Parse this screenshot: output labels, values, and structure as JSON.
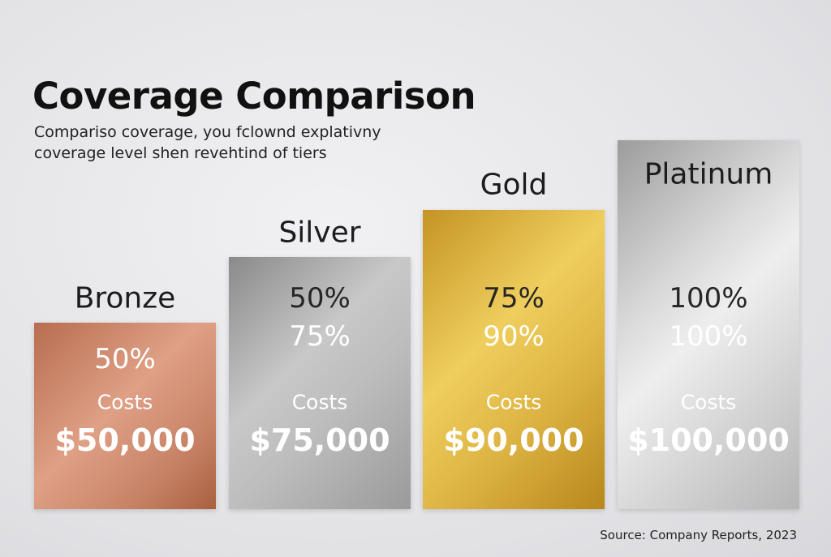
{
  "header": {
    "title": "Coverage Comparison",
    "subtitle": [
      "Compariso coverage, you fclownd explativny",
      "coverage level shen revehtind of tiers"
    ]
  },
  "tiers": [
    {
      "name": "Bronze",
      "coverage": [
        "50%"
      ],
      "cost_label": "Costs",
      "cost": "$50,000"
    },
    {
      "name": "Silver",
      "coverage": [
        "50%",
        "75%"
      ],
      "cost_label": "Costs",
      "cost": "$75,000"
    },
    {
      "name": "Gold",
      "coverage": [
        "75%",
        "90%"
      ],
      "cost_label": "Costs",
      "cost": "$90,000"
    },
    {
      "name": "Platinum",
      "coverage": [
        "100%",
        "100%"
      ],
      "cost_label": "Costs",
      "cost": "$100,000"
    }
  ],
  "source": "Source: Company Reports, 2023"
}
